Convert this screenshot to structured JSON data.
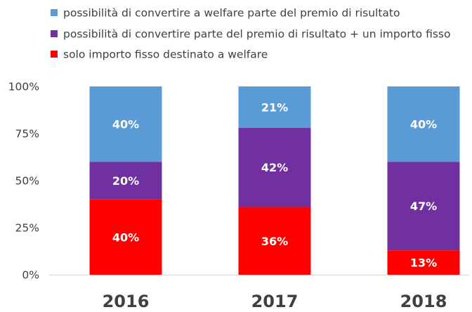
{
  "chart_data": {
    "type": "bar",
    "stacked": true,
    "categories": [
      "2016",
      "2017",
      "2018"
    ],
    "series": [
      {
        "name": "solo importo fisso destinato a welfare",
        "color": "#ff0000",
        "values": [
          40,
          36,
          13
        ],
        "labels": [
          "40%",
          "36%",
          "13%"
        ]
      },
      {
        "name": "possibilità di convertire parte del premio di risultato + un importo fisso",
        "color": "#7030a0",
        "values": [
          20,
          42,
          47
        ],
        "labels": [
          "20%",
          "42%",
          "47%"
        ]
      },
      {
        "name": "possibilità di convertire a welfare parte del premio di risultato",
        "color": "#5b9bd5",
        "values": [
          40,
          21,
          40
        ],
        "labels": [
          "40%",
          "21%",
          "40%"
        ]
      }
    ],
    "legend_order": [
      2,
      1,
      0
    ],
    "legend_position": "top",
    "ylim": [
      0,
      100
    ],
    "yticks": [
      "0%",
      "25%",
      "50%",
      "75%",
      "100%"
    ],
    "grid": false
  }
}
